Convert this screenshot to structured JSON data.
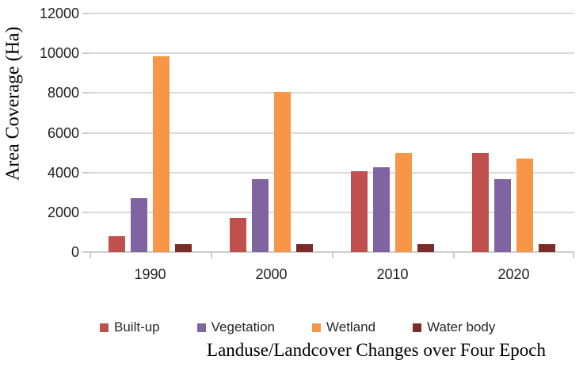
{
  "chart_data": {
    "type": "bar",
    "title": "Landuse/Landcover Changes over Four Epoch",
    "xlabel": "",
    "ylabel": "Area Coverage (Ha)",
    "categories": [
      "1990",
      "2000",
      "2010",
      "2020"
    ],
    "series": [
      {
        "name": "Built-up",
        "color": "#C0504D",
        "values": [
          800,
          1700,
          4050,
          5000
        ]
      },
      {
        "name": "Vegetation",
        "color": "#8064A2",
        "values": [
          2700,
          3650,
          4250,
          3650
        ]
      },
      {
        "name": "Wetland",
        "color": "#F79646",
        "values": [
          9850,
          8050,
          5000,
          4700
        ]
      },
      {
        "name": "Water body",
        "color": "#7B2C27",
        "values": [
          400,
          400,
          400,
          400
        ]
      }
    ],
    "ylim": [
      0,
      12000
    ],
    "ytick_step": 2000,
    "yticks": [
      0,
      2000,
      4000,
      6000,
      8000,
      10000,
      12000
    ],
    "grid": true,
    "gridline_color": "#DADADA",
    "legend_position": "bottom"
  }
}
